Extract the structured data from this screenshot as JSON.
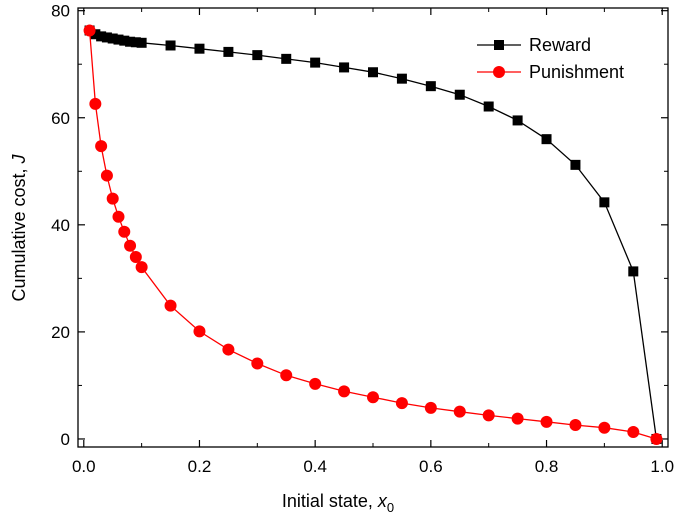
{
  "chart_data": {
    "type": "line",
    "title": "",
    "xlabel": "Initial state,",
    "xlabel_var": "x",
    "xlabel_sub": "0",
    "ylabel": "Cumulative cost,",
    "ylabel_var": "J",
    "xlim": [
      -0.01,
      1.01
    ],
    "ylim": [
      -1.5,
      80.5
    ],
    "xticks": [
      0.0,
      0.2,
      0.4,
      0.6,
      0.8,
      1.0
    ],
    "xtick_labels": [
      "0.0",
      "0.2",
      "0.4",
      "0.6",
      "0.8",
      "1.0"
    ],
    "yticks": [
      0,
      20,
      40,
      60,
      80
    ],
    "ytick_labels": [
      "0",
      "20",
      "40",
      "60",
      "80"
    ],
    "grid": false,
    "legend_position": "top-right",
    "series": [
      {
        "name": "Reward",
        "color": "#000000",
        "marker": "square",
        "x": [
          0.01,
          0.02,
          0.03,
          0.04,
          0.05,
          0.06,
          0.07,
          0.08,
          0.09,
          0.1,
          0.15,
          0.2,
          0.25,
          0.3,
          0.35,
          0.4,
          0.45,
          0.5,
          0.55,
          0.6,
          0.65,
          0.7,
          0.75,
          0.8,
          0.85,
          0.9,
          0.95,
          0.99
        ],
        "y": [
          76.3,
          75.6,
          75.2,
          75.0,
          74.8,
          74.6,
          74.4,
          74.2,
          74.1,
          74.0,
          73.5,
          72.9,
          72.3,
          71.7,
          71.0,
          70.3,
          69.4,
          68.5,
          67.3,
          65.9,
          64.3,
          62.1,
          59.5,
          56.0,
          51.2,
          44.2,
          31.3,
          0.0
        ]
      },
      {
        "name": "Punishment",
        "color": "#ff0000",
        "marker": "circle",
        "x": [
          0.01,
          0.02,
          0.03,
          0.04,
          0.05,
          0.06,
          0.07,
          0.08,
          0.09,
          0.1,
          0.15,
          0.2,
          0.25,
          0.3,
          0.35,
          0.4,
          0.45,
          0.5,
          0.55,
          0.6,
          0.65,
          0.7,
          0.75,
          0.8,
          0.85,
          0.9,
          0.95,
          0.99
        ],
        "y": [
          76.3,
          62.6,
          54.7,
          49.2,
          44.9,
          41.5,
          38.7,
          36.1,
          34.0,
          32.1,
          24.9,
          20.1,
          16.7,
          14.1,
          11.9,
          10.3,
          8.9,
          7.8,
          6.7,
          5.8,
          5.1,
          4.4,
          3.8,
          3.2,
          2.6,
          2.1,
          1.3,
          0.0
        ]
      }
    ]
  }
}
